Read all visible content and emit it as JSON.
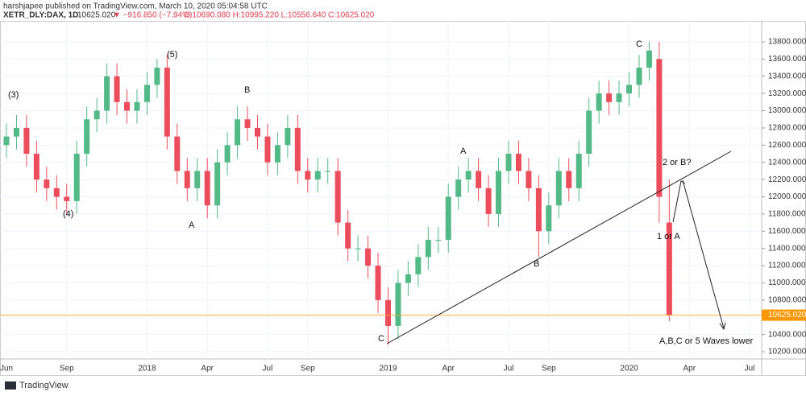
{
  "header": {
    "publisher": "harshjapee published on TradingView.com, March 10, 2020 05:04:58 UTC",
    "symbol": "XETR_DLY:DAX, 1D",
    "last": "10625.020",
    "change": "▼ −916.850 (−7.94%)",
    "ohlc": "O:10690.080 H:10995.220 L:10556.640 C:10625.020"
  },
  "footer": {
    "brand": "TradingView"
  },
  "chart_data": {
    "type": "candlestick",
    "categories": [
      "Jun",
      null,
      null,
      null,
      null,
      null,
      "Sep",
      null,
      null,
      null,
      null,
      null,
      null,
      null,
      "2018",
      null,
      null,
      null,
      null,
      null,
      "Apr",
      null,
      null,
      null,
      null,
      null,
      "Jul",
      null,
      null,
      null,
      "Sep",
      null,
      null,
      null,
      null,
      null,
      null,
      null,
      "2019",
      null,
      null,
      null,
      null,
      null,
      "Apr",
      null,
      null,
      null,
      null,
      null,
      "Jul",
      null,
      null,
      null,
      "Sep",
      null,
      null,
      null,
      null,
      null,
      null,
      null,
      "2020",
      null,
      null,
      null,
      null,
      null,
      "Apr",
      null,
      null,
      null,
      null,
      null,
      "Jul",
      null
    ],
    "open": [
      12600,
      12700,
      12800,
      12500,
      12200,
      12100,
      12000,
      11950,
      12500,
      12900,
      13000,
      13400,
      13100,
      13000,
      13100,
      13300,
      13500,
      12700,
      12300,
      12100,
      12300,
      11900,
      12400,
      12600,
      12900,
      12800,
      12700,
      12400,
      12600,
      12800,
      12300,
      12200,
      12300,
      12300,
      11700,
      11400,
      11400,
      11200,
      10800,
      10500,
      11000,
      11100,
      11300,
      11500,
      11500,
      12000,
      12200,
      12300,
      12100,
      11800,
      12300,
      12500,
      12300,
      12100,
      11600,
      11900,
      12300,
      12100,
      12500,
      13000,
      13200,
      13100,
      13200,
      13300,
      13500,
      13600,
      11700,
      null,
      null,
      null,
      null,
      null,
      null,
      null,
      null,
      null
    ],
    "high": [
      12850,
      12950,
      12950,
      12650,
      12350,
      12250,
      12150,
      12650,
      13050,
      13150,
      13550,
      13550,
      13250,
      13250,
      13450,
      13600,
      13650,
      12850,
      12450,
      12450,
      12450,
      12550,
      12750,
      13050,
      13050,
      12950,
      12850,
      12750,
      12950,
      12950,
      12450,
      12450,
      12450,
      12450,
      11850,
      11550,
      11550,
      11350,
      10950,
      11150,
      11250,
      11450,
      11650,
      11650,
      12150,
      12350,
      12450,
      12450,
      12250,
      12450,
      12650,
      12650,
      12450,
      12250,
      12050,
      12450,
      12450,
      12650,
      13150,
      13350,
      13350,
      13350,
      13450,
      13650,
      13800,
      13800,
      12200,
      null,
      null,
      null,
      null,
      null,
      null,
      null,
      null,
      null
    ],
    "low": [
      12450,
      12550,
      12350,
      12050,
      11950,
      11850,
      11800,
      11800,
      12350,
      12750,
      12850,
      12950,
      12850,
      12850,
      12950,
      13150,
      12550,
      12150,
      11950,
      11950,
      11750,
      11750,
      12250,
      12450,
      12650,
      12550,
      12250,
      12250,
      12450,
      12150,
      12050,
      12050,
      12150,
      11550,
      11250,
      11250,
      11050,
      10650,
      10280,
      10350,
      10850,
      10950,
      11150,
      11350,
      11350,
      11850,
      12050,
      11950,
      11650,
      11650,
      12150,
      12150,
      11950,
      11300,
      11450,
      11750,
      11950,
      11950,
      12350,
      12850,
      12950,
      12950,
      13050,
      13150,
      13350,
      11700,
      10556,
      null,
      null,
      null,
      null,
      null,
      null,
      null,
      null,
      null
    ],
    "close": [
      12700,
      12800,
      12500,
      12200,
      12100,
      12000,
      11950,
      12500,
      12900,
      13000,
      13400,
      13100,
      13000,
      13100,
      13300,
      13500,
      12700,
      12300,
      12100,
      12300,
      11900,
      12400,
      12600,
      12900,
      12800,
      12700,
      12400,
      12600,
      12800,
      12300,
      12200,
      12300,
      12300,
      11700,
      11400,
      11400,
      11200,
      10800,
      10500,
      11000,
      11100,
      11300,
      11500,
      11500,
      12000,
      12200,
      12300,
      12100,
      11800,
      12300,
      12500,
      12300,
      12100,
      11600,
      11900,
      12300,
      12100,
      12500,
      13000,
      13200,
      13100,
      13200,
      13300,
      13500,
      13700,
      12000,
      10625,
      null,
      null,
      null,
      null,
      null,
      null,
      null,
      null,
      null
    ],
    "up_color": "#53b987",
    "down_color": "#eb4d5c",
    "ylim": [
      10116,
      14043
    ],
    "yticks": [
      {
        "value": 10200,
        "label": "10200.000"
      },
      {
        "value": 10400,
        "label": "10400.000"
      },
      {
        "value": 10600,
        "label": "10600.000"
      },
      {
        "value": 10800,
        "label": "10800.000"
      },
      {
        "value": 11000,
        "label": "11000.000"
      },
      {
        "value": 11200,
        "label": "11200.000"
      },
      {
        "value": 11400,
        "label": "11400.000"
      },
      {
        "value": 11600,
        "label": "11600.000"
      },
      {
        "value": 11800,
        "label": "11800.000"
      },
      {
        "value": 12000,
        "label": "12000.000"
      },
      {
        "value": 12200,
        "label": "12200.000"
      },
      {
        "value": 12400,
        "label": "12400.000"
      },
      {
        "value": 12600,
        "label": "12600.000"
      },
      {
        "value": 12800,
        "label": "12800.000"
      },
      {
        "value": 13000,
        "label": "13000.000"
      },
      {
        "value": 13200,
        "label": "13200.000"
      },
      {
        "value": 13400,
        "label": "13400.000"
      },
      {
        "value": 13600,
        "label": "13600.000"
      },
      {
        "value": 13800,
        "label": "13800.000"
      }
    ],
    "last_price": {
      "value": 10625.02,
      "label": "10625.020"
    },
    "grid": true,
    "annotations": [
      "(3)",
      "(4)",
      "(5)",
      "A",
      "B",
      "C",
      "A",
      "B",
      "C",
      "2 or B?",
      "1 or A",
      "A,B,C  or 5 Waves lower"
    ]
  }
}
